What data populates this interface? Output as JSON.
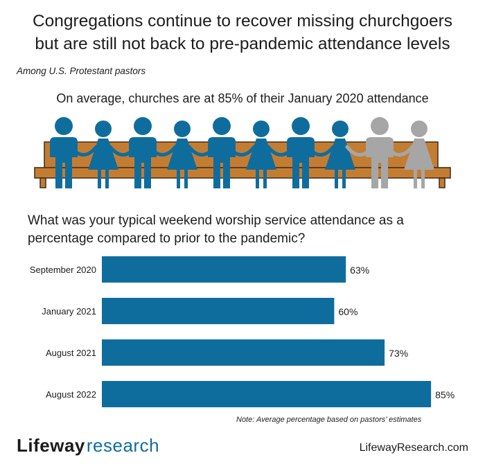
{
  "title_line1": "Congregations continue to recover missing churchgoers",
  "title_line2": "but are still not back to pre-pandemic attendance levels",
  "subtitle": "Among U.S. Protestant pastors",
  "headline": "On average, churches are at 85% of their January 2020 attendance",
  "question": "What was your typical weekend worship service attendance as a percentage compared to prior to the pandemic?",
  "note": "Note: Average percentage based on pastors’ estimates",
  "brand": {
    "name1": "Lifeway",
    "name2": "research"
  },
  "website": "LifewayResearch.com",
  "colors": {
    "bar": "#0f6d9e",
    "figure_filled": "#0f6d9e",
    "figure_empty": "#a6a6a6",
    "bench": "#c37d33",
    "bench_outline": "#3a2a1a",
    "brand_accent": "#0f6d9e"
  },
  "pictogram": {
    "total": 10,
    "filled": 8,
    "pattern": [
      "man",
      "woman",
      "man",
      "woman",
      "man",
      "woman",
      "man",
      "woman",
      "man",
      "woman"
    ]
  },
  "chart_data": {
    "type": "bar",
    "orientation": "horizontal",
    "categories": [
      "September 2020",
      "January 2021",
      "August 2021",
      "August 2022"
    ],
    "values": [
      63,
      60,
      73,
      85
    ],
    "value_labels": [
      "63%",
      "60%",
      "73%",
      "85%"
    ],
    "xlim": [
      0,
      100
    ],
    "grid": false,
    "legend": "none"
  }
}
